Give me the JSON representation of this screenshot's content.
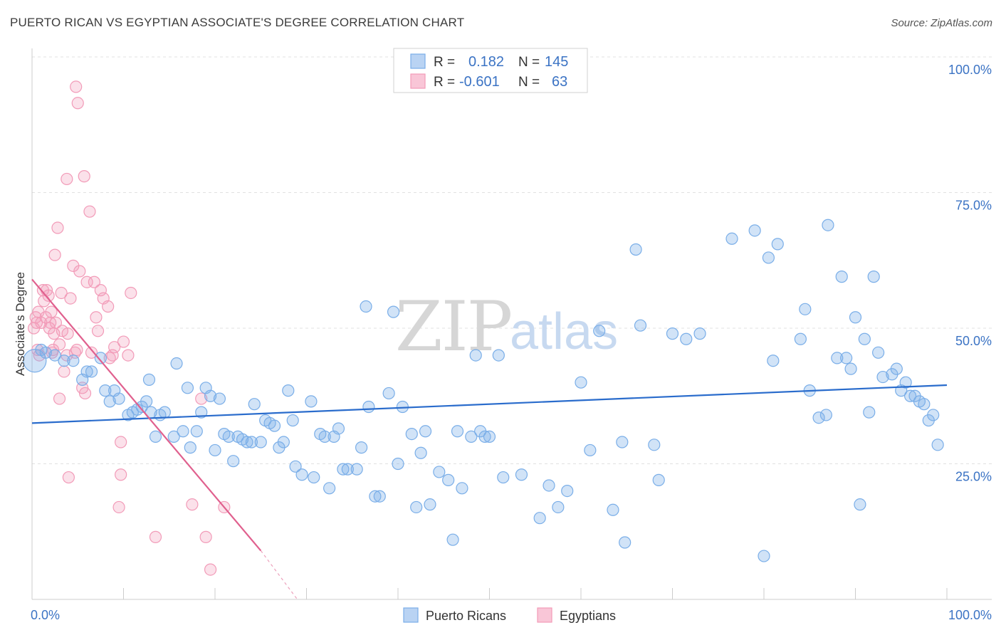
{
  "title": "PUERTO RICAN VS EGYPTIAN ASSOCIATE'S DEGREE CORRELATION CHART",
  "source": "Source: ZipAtlas.com",
  "watermark": {
    "zip": "ZIP",
    "atlas": "atlas"
  },
  "chart_data": {
    "type": "scatter",
    "xlabel": "",
    "ylabel": "Associate's Degree",
    "xlim": [
      0,
      100
    ],
    "ylim": [
      0,
      100
    ],
    "x_tick_labels": [
      "0.0%",
      "100.0%"
    ],
    "y_ticks": [
      25,
      50,
      75,
      100
    ],
    "y_tick_labels": [
      "25.0%",
      "50.0%",
      "75.0%",
      "100.0%"
    ],
    "grid": true,
    "legend_stats": {
      "r_label": "R =",
      "n_label": "N =",
      "rows": [
        {
          "series": "Puerto Ricans",
          "r": "0.182",
          "n": "145"
        },
        {
          "series": "Egyptians",
          "r": "-0.601",
          "n": "63"
        }
      ]
    },
    "series": [
      {
        "name": "Puerto Ricans",
        "color": "#7aaee8",
        "line_color": "#2a6ccc",
        "trend": {
          "x": [
            0,
            100
          ],
          "y": [
            32.5,
            39.5
          ]
        },
        "points": [
          [
            0.3,
            44
          ],
          [
            1.0,
            46
          ],
          [
            1.5,
            45.5
          ],
          [
            2.5,
            45
          ],
          [
            3.5,
            44
          ],
          [
            4.5,
            44
          ],
          [
            5.5,
            40.5
          ],
          [
            6.0,
            42
          ],
          [
            6.5,
            42
          ],
          [
            7.5,
            44.5
          ],
          [
            8.0,
            38.5
          ],
          [
            8.5,
            36.5
          ],
          [
            9.0,
            38.5
          ],
          [
            9.5,
            37
          ],
          [
            10.5,
            34
          ],
          [
            11.0,
            34.5
          ],
          [
            11.5,
            35
          ],
          [
            12.0,
            35.5
          ],
          [
            12.5,
            36.5
          ],
          [
            12.8,
            40.5
          ],
          [
            13.0,
            34.5
          ],
          [
            13.5,
            30
          ],
          [
            14.0,
            34
          ],
          [
            14.5,
            34.5
          ],
          [
            15.5,
            30
          ],
          [
            15.8,
            43.5
          ],
          [
            16.5,
            31
          ],
          [
            17.0,
            39
          ],
          [
            17.3,
            28
          ],
          [
            18.0,
            31
          ],
          [
            18.5,
            34.5
          ],
          [
            19.0,
            39
          ],
          [
            19.5,
            37.5
          ],
          [
            20.0,
            27.5
          ],
          [
            20.5,
            37
          ],
          [
            21.0,
            30.5
          ],
          [
            21.5,
            30
          ],
          [
            22.0,
            25.5
          ],
          [
            22.5,
            30
          ],
          [
            23.0,
            29.5
          ],
          [
            23.5,
            29
          ],
          [
            24.0,
            29
          ],
          [
            24.3,
            36
          ],
          [
            25.0,
            29
          ],
          [
            25.5,
            33
          ],
          [
            26.0,
            32.5
          ],
          [
            26.5,
            32
          ],
          [
            27.0,
            28
          ],
          [
            27.5,
            29
          ],
          [
            28.0,
            38.5
          ],
          [
            28.5,
            33
          ],
          [
            28.8,
            24.5
          ],
          [
            29.5,
            23
          ],
          [
            30.5,
            36.5
          ],
          [
            30.8,
            22.5
          ],
          [
            31.5,
            30.5
          ],
          [
            32.0,
            30
          ],
          [
            32.5,
            20.5
          ],
          [
            33.0,
            30
          ],
          [
            33.5,
            31.5
          ],
          [
            34.0,
            24
          ],
          [
            34.5,
            24
          ],
          [
            35.5,
            24
          ],
          [
            36.0,
            28
          ],
          [
            36.5,
            54
          ],
          [
            36.8,
            35.5
          ],
          [
            37.5,
            19
          ],
          [
            38.0,
            19
          ],
          [
            39.0,
            38
          ],
          [
            39.5,
            53
          ],
          [
            40.0,
            25
          ],
          [
            40.5,
            35.5
          ],
          [
            41.5,
            30.5
          ],
          [
            42.0,
            17
          ],
          [
            42.5,
            27
          ],
          [
            43.0,
            31
          ],
          [
            43.5,
            17.5
          ],
          [
            44.5,
            23.5
          ],
          [
            45.5,
            22
          ],
          [
            46.0,
            11
          ],
          [
            46.5,
            31
          ],
          [
            47.0,
            20.5
          ],
          [
            48.0,
            30
          ],
          [
            48.5,
            45
          ],
          [
            49.0,
            31
          ],
          [
            49.5,
            30
          ],
          [
            50.0,
            30
          ],
          [
            51.0,
            45
          ],
          [
            51.5,
            22.5
          ],
          [
            53.5,
            23
          ],
          [
            55.5,
            15
          ],
          [
            56.5,
            21
          ],
          [
            57.5,
            17
          ],
          [
            58.5,
            20
          ],
          [
            60.0,
            40
          ],
          [
            61.0,
            27.5
          ],
          [
            62.0,
            49.5
          ],
          [
            63.5,
            16.5
          ],
          [
            64.5,
            29
          ],
          [
            64.8,
            10.5
          ],
          [
            66.0,
            64.5
          ],
          [
            66.5,
            50.5
          ],
          [
            68.0,
            28.5
          ],
          [
            68.5,
            22
          ],
          [
            70.0,
            49
          ],
          [
            71.5,
            48
          ],
          [
            73.0,
            49
          ],
          [
            76.5,
            66.5
          ],
          [
            79.0,
            68
          ],
          [
            80.0,
            8
          ],
          [
            80.5,
            63
          ],
          [
            81.0,
            44
          ],
          [
            81.5,
            65.5
          ],
          [
            84.0,
            48
          ],
          [
            84.5,
            53.5
          ],
          [
            85.0,
            38.5
          ],
          [
            86.0,
            33.5
          ],
          [
            86.8,
            34
          ],
          [
            87.0,
            69
          ],
          [
            88.0,
            44.5
          ],
          [
            88.5,
            59.5
          ],
          [
            89.0,
            44.5
          ],
          [
            89.5,
            42.5
          ],
          [
            90.0,
            52
          ],
          [
            90.5,
            17.5
          ],
          [
            91.0,
            48
          ],
          [
            91.5,
            34.5
          ],
          [
            92.0,
            59.5
          ],
          [
            92.5,
            45.5
          ],
          [
            93.0,
            41
          ],
          [
            94.0,
            41.5
          ],
          [
            94.5,
            42.5
          ],
          [
            95.0,
            38.5
          ],
          [
            95.5,
            40
          ],
          [
            96.0,
            37.5
          ],
          [
            96.5,
            37.5
          ],
          [
            97.0,
            36.5
          ],
          [
            97.5,
            36
          ],
          [
            98.0,
            33
          ],
          [
            98.5,
            34
          ],
          [
            99.0,
            28.5
          ]
        ]
      },
      {
        "name": "Egyptians",
        "color": "#f29bb8",
        "line_color": "#e0608e",
        "trend": {
          "x": [
            0,
            25
          ],
          "y": [
            59,
            9
          ]
        },
        "trend_dashed": {
          "x": [
            25,
            29
          ],
          "y": [
            9,
            0
          ]
        },
        "points": [
          [
            0.2,
            50
          ],
          [
            0.4,
            52
          ],
          [
            0.5,
            51
          ],
          [
            0.6,
            46
          ],
          [
            0.7,
            53
          ],
          [
            0.8,
            45
          ],
          [
            1.0,
            51
          ],
          [
            1.2,
            57
          ],
          [
            1.3,
            55
          ],
          [
            1.5,
            52
          ],
          [
            1.6,
            57
          ],
          [
            1.8,
            56
          ],
          [
            1.9,
            50
          ],
          [
            2.0,
            51
          ],
          [
            2.1,
            53
          ],
          [
            2.2,
            45.5
          ],
          [
            2.3,
            46
          ],
          [
            2.4,
            49
          ],
          [
            2.5,
            63.5
          ],
          [
            2.6,
            51
          ],
          [
            2.8,
            68.5
          ],
          [
            3.0,
            47
          ],
          [
            3.0,
            37
          ],
          [
            3.2,
            56.5
          ],
          [
            3.3,
            49.5
          ],
          [
            3.5,
            42
          ],
          [
            3.8,
            77.5
          ],
          [
            3.8,
            45
          ],
          [
            3.9,
            49
          ],
          [
            4.0,
            22.5
          ],
          [
            4.2,
            55.5
          ],
          [
            4.5,
            61.5
          ],
          [
            4.7,
            45.5
          ],
          [
            4.8,
            94.5
          ],
          [
            4.9,
            46
          ],
          [
            5.0,
            91.5
          ],
          [
            5.2,
            60.5
          ],
          [
            5.5,
            39
          ],
          [
            5.7,
            78
          ],
          [
            5.8,
            38
          ],
          [
            6.0,
            58.5
          ],
          [
            6.3,
            71.5
          ],
          [
            6.5,
            45.5
          ],
          [
            6.8,
            58.5
          ],
          [
            7.0,
            52
          ],
          [
            7.2,
            49.5
          ],
          [
            7.5,
            57
          ],
          [
            7.8,
            55.5
          ],
          [
            8.3,
            54
          ],
          [
            8.5,
            44.5
          ],
          [
            8.8,
            45
          ],
          [
            9.0,
            46.5
          ],
          [
            9.5,
            17
          ],
          [
            9.7,
            23
          ],
          [
            9.7,
            29
          ],
          [
            10.0,
            47.5
          ],
          [
            10.5,
            45
          ],
          [
            10.8,
            56.5
          ],
          [
            13.5,
            11.5
          ],
          [
            17.5,
            17.5
          ],
          [
            18.5,
            37
          ],
          [
            19.0,
            11.5
          ],
          [
            19.5,
            5.5
          ],
          [
            21.0,
            17
          ]
        ]
      }
    ]
  },
  "bottom_legend": [
    "Puerto Ricans",
    "Egyptians"
  ]
}
